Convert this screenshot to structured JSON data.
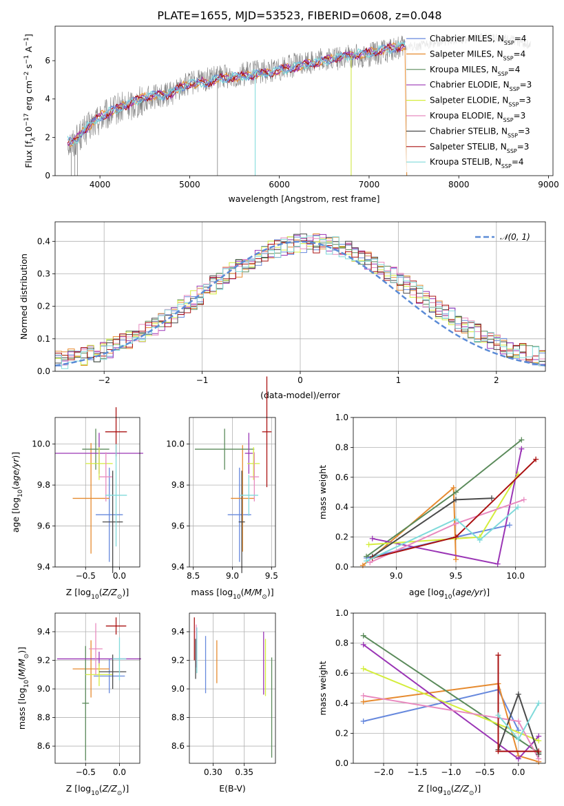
{
  "figure_title": "PLATE=1655, MJD=53523, FIBERID=0608, z=0.048",
  "colors": [
    "#6688dd",
    "#e68a2e",
    "#5a8a5a",
    "#9a35b5",
    "#d4ed3c",
    "#e88abf",
    "#4a4a4a",
    "#aa1111",
    "#7fdada"
  ],
  "chart_data": [
    {
      "id": "spectrum",
      "type": "line",
      "title": "PLATE=1655, MJD=53523, FIBERID=0608, z=0.048",
      "xlabel": "wavelength [Angstrom, rest frame]",
      "ylabel": "Flux [f",
      "xlim": [
        3500,
        9050
      ],
      "ylim": [
        0,
        7.8
      ],
      "xticks": [
        4000,
        5000,
        6000,
        7000,
        8000,
        9000
      ],
      "yticks": [
        0,
        2,
        4,
        6
      ],
      "data_x": [
        3640,
        3700,
        3800,
        3900,
        4000,
        4100,
        4200,
        4300,
        4400,
        4500,
        4600,
        4700,
        4800,
        4900,
        5000,
        5100,
        5200,
        5300,
        5400,
        5500,
        5600,
        5700,
        5800,
        5900,
        6000,
        6200,
        6400,
        6600,
        6800,
        7000,
        7200,
        7400,
        7600,
        7800,
        8000,
        8200,
        8400,
        8600,
        8800
      ],
      "data_y": [
        1.8,
        1.7,
        2.2,
        2.6,
        3.0,
        3.2,
        3.5,
        3.6,
        3.8,
        4.0,
        4.1,
        4.2,
        4.3,
        4.6,
        4.8,
        4.9,
        5.0,
        5.1,
        5.2,
        5.2,
        5.3,
        5.4,
        5.4,
        5.5,
        5.6,
        5.8,
        6.0,
        6.1,
        6.2,
        6.3,
        6.5,
        6.7,
        6.8,
        7.0,
        7.1,
        7.2,
        7.2,
        7.1,
        6.8
      ],
      "model_x": [
        3640,
        3700,
        3800,
        3900,
        4000,
        4100,
        4200,
        4300,
        4400,
        4500,
        4600,
        4700,
        4800,
        4900,
        5000,
        5200,
        5400,
        5600,
        5800,
        6000,
        6200,
        6400,
        6600,
        6800,
        7000,
        7200,
        7400
      ],
      "model_y": [
        1.8,
        1.7,
        2.3,
        2.7,
        3.1,
        3.3,
        3.5,
        3.7,
        3.9,
        4.1,
        4.2,
        4.2,
        4.3,
        4.6,
        4.8,
        4.9,
        5.1,
        5.2,
        5.3,
        5.5,
        5.7,
        5.9,
        6.1,
        6.3,
        6.4,
        6.6,
        6.8
      ],
      "legend": [
        {
          "label": "Chabrier MILES, N",
          "n": "=4"
        },
        {
          "label": "Salpeter MILES, N",
          "n": "=4"
        },
        {
          "label": "Kroupa MILES, N",
          "n": "=4"
        },
        {
          "label": "Chabrier ELODIE, N",
          "n": "=3"
        },
        {
          "label": "Salpeter ELODIE, N",
          "n": "=3"
        },
        {
          "label": "Kroupa ELODIE, N",
          "n": "=3"
        },
        {
          "label": "Chabrier STELIB, N",
          "n": "=3"
        },
        {
          "label": "Salpeter STELIB, N",
          "n": "=3"
        },
        {
          "label": "Kroupa STELIB, N",
          "n": "=4"
        }
      ]
    },
    {
      "id": "residuals",
      "type": "line",
      "xlabel": "(data-model)/error",
      "ylabel": "Normed distribution",
      "xlim": [
        -2.5,
        2.5
      ],
      "ylim": [
        0,
        0.46
      ],
      "xticks": [
        -2,
        -1,
        0,
        1,
        2
      ],
      "yticks": [
        0.0,
        0.1,
        0.2,
        0.3,
        0.4
      ],
      "bin_width": 0.1,
      "hist_base": [
        0.035,
        0.037,
        0.04,
        0.043,
        0.047,
        0.052,
        0.058,
        0.064,
        0.071,
        0.079,
        0.087,
        0.096,
        0.106,
        0.117,
        0.128,
        0.14,
        0.152,
        0.165,
        0.178,
        0.192,
        0.206,
        0.22,
        0.235,
        0.249,
        0.264,
        0.278,
        0.292,
        0.305,
        0.318,
        0.331,
        0.342,
        0.353,
        0.362,
        0.371,
        0.378,
        0.384,
        0.389,
        0.392,
        0.394,
        0.395,
        0.394,
        0.392,
        0.389,
        0.384,
        0.378,
        0.371,
        0.362,
        0.353,
        0.342,
        0.331,
        0.318,
        0.305,
        0.292,
        0.278,
        0.264,
        0.249,
        0.235,
        0.22,
        0.206,
        0.192,
        0.178,
        0.165,
        0.152,
        0.14,
        0.128,
        0.117,
        0.106,
        0.096,
        0.087,
        0.079,
        0.071,
        0.064,
        0.058,
        0.052,
        0.047,
        0.043
      ],
      "legend": "𝒩(0, 1)"
    },
    {
      "id": "age_vs_Z",
      "type": "scatter",
      "xlabel": "Z [log",
      "ylabel": "age  [log",
      "xlim": [
        -0.95,
        0.3
      ],
      "ylim": [
        9.4,
        10.13
      ],
      "xticks": [
        -0.5,
        0.0
      ],
      "xtick_labels": [
        "−0.5",
        "0.0"
      ],
      "yticks": [
        9.4,
        9.6,
        9.8,
        10.0
      ],
      "points": [
        {
          "x": -0.15,
          "y": 9.655,
          "dx": 0.2,
          "dy": 0.23
        },
        {
          "x": -0.42,
          "y": 9.735,
          "dx": 0.27,
          "dy": 0.27
        },
        {
          "x": -0.35,
          "y": 9.975,
          "dx": 0.2,
          "dy": 0.1
        },
        {
          "x": -0.3,
          "y": 9.955,
          "dx": 0.65,
          "dy": 0.1
        },
        {
          "x": -0.3,
          "y": 9.905,
          "dx": 0.2,
          "dy": 0.08
        },
        {
          "x": -0.2,
          "y": 9.84,
          "dx": 0.1,
          "dy": 0.12
        },
        {
          "x": -0.1,
          "y": 9.62,
          "dx": 0.15,
          "dy": 0.25
        },
        {
          "x": -0.05,
          "y": 10.06,
          "dx": 0.16,
          "dy": 0.12
        },
        {
          "x": -0.05,
          "y": 9.75,
          "dx": 0.16,
          "dy": 0.25
        }
      ]
    },
    {
      "id": "age_vs_mass",
      "type": "scatter",
      "xlabel": "mass [log",
      "ylabel": "",
      "xlim": [
        8.45,
        9.55
      ],
      "ylim": [
        9.4,
        10.13
      ],
      "xticks": [
        8.5,
        9.0,
        9.5
      ],
      "yticks": [
        9.4,
        9.6,
        9.8,
        10.0
      ],
      "points": [
        {
          "x": 9.09,
          "y": 9.655,
          "dx": 0.15,
          "dy": 0.23
        },
        {
          "x": 9.13,
          "y": 9.735,
          "dx": 0.15,
          "dy": 0.26
        },
        {
          "x": 8.9,
          "y": 9.975,
          "dx": 0.38,
          "dy": 0.1
        },
        {
          "x": 9.21,
          "y": 9.955,
          "dx": 0.05,
          "dy": 0.1
        },
        {
          "x": 9.27,
          "y": 9.905,
          "dx": 0.08,
          "dy": 0.08
        },
        {
          "x": 9.28,
          "y": 9.84,
          "dx": 0.06,
          "dy": 0.12
        },
        {
          "x": 9.12,
          "y": 9.62,
          "dx": 0.04,
          "dy": 0.25
        },
        {
          "x": 9.44,
          "y": 10.06,
          "dx": 0.06,
          "dy": 0.27
        },
        {
          "x": 9.21,
          "y": 9.75,
          "dx": 0.12,
          "dy": 0.1
        }
      ]
    },
    {
      "id": "weight_vs_age",
      "type": "line",
      "xlabel": "age  [log",
      "ylabel": "mass weight",
      "xlim": [
        8.64,
        10.25
      ],
      "ylim": [
        0.0,
        1.0
      ],
      "xticks": [
        9.0,
        9.5,
        10.0
      ],
      "yticks": [
        0.0,
        0.2,
        0.4,
        0.6,
        0.8,
        1.0
      ],
      "series": [
        {
          "x": [
            8.75,
            9.5,
            9.95
          ],
          "y": [
            0.06,
            0.2,
            0.28
          ]
        },
        {
          "x": [
            8.72,
            9.48,
            9.5
          ],
          "y": [
            0.01,
            0.53,
            0.05
          ]
        },
        {
          "x": [
            8.75,
            9.5,
            10.05
          ],
          "y": [
            0.07,
            0.5,
            0.85
          ]
        },
        {
          "x": [
            8.8,
            9.85,
            10.05
          ],
          "y": [
            0.19,
            0.02,
            0.79
          ]
        },
        {
          "x": [
            8.77,
            9.7,
            10.02
          ],
          "y": [
            0.15,
            0.2,
            0.62
          ]
        },
        {
          "x": [
            8.78,
            9.5,
            10.07
          ],
          "y": [
            0.03,
            0.29,
            0.45
          ]
        },
        {
          "x": [
            8.8,
            9.5,
            9.8
          ],
          "y": [
            0.07,
            0.45,
            0.46
          ]
        },
        {
          "x": [
            8.8,
            9.5,
            10.17
          ],
          "y": [
            0.06,
            0.2,
            0.72
          ]
        },
        {
          "x": [
            8.75,
            9.5,
            9.7,
            10.02
          ],
          "y": [
            0.04,
            0.32,
            0.18,
            0.4
          ]
        }
      ]
    },
    {
      "id": "mass_vs_Z",
      "type": "scatter",
      "xlabel": "Z [log",
      "ylabel": "mass [log",
      "xlim": [
        -0.95,
        0.3
      ],
      "ylim": [
        8.48,
        9.53
      ],
      "xticks": [
        -0.5,
        0.0
      ],
      "xtick_labels": [
        "−0.5",
        "0.0"
      ],
      "yticks": [
        8.6,
        8.8,
        9.0,
        9.2,
        9.4
      ],
      "ytick_labels": [
        "8.6",
        "8.8",
        "9.0",
        "9.2",
        "9.4"
      ],
      "points": [
        {
          "x": -0.15,
          "y": 9.09,
          "dx": 0.23,
          "dy": 0.12
        },
        {
          "x": -0.42,
          "y": 9.14,
          "dx": 0.27,
          "dy": 0.2
        },
        {
          "x": -0.5,
          "y": 8.9,
          "dx": 0.05,
          "dy": 0.4
        },
        {
          "x": -0.3,
          "y": 9.21,
          "dx": 0.62,
          "dy": 0.05
        },
        {
          "x": -0.3,
          "y": 9.1,
          "dx": 0.2,
          "dy": 0.08
        },
        {
          "x": -0.35,
          "y": 9.28,
          "dx": 0.1,
          "dy": 0.18
        },
        {
          "x": -0.1,
          "y": 9.12,
          "dx": 0.2,
          "dy": 0.12
        },
        {
          "x": -0.05,
          "y": 9.44,
          "dx": 0.15,
          "dy": 0.06
        },
        {
          "x": 0.0,
          "y": 9.21,
          "dx": 0.1,
          "dy": 0.15
        }
      ]
    },
    {
      "id": "mass_vs_EBV",
      "type": "scatter",
      "xlabel": "E(B-V)",
      "ylabel": "",
      "xlim": [
        0.262,
        0.4
      ],
      "ylim": [
        8.48,
        9.53
      ],
      "xticks": [
        0.3,
        0.35
      ],
      "xtick_labels": [
        "0.30",
        "0.35"
      ],
      "yticks": [
        8.6,
        8.8,
        9.0,
        9.2,
        9.4
      ],
      "ytick_labels": [
        "8.6",
        "8.8",
        "9.0",
        "9.2",
        "9.4"
      ],
      "points": [
        {
          "x": 0.288,
          "y": 9.17,
          "dx": 0,
          "dy": 0.2
        },
        {
          "x": 0.306,
          "y": 9.19,
          "dx": 0,
          "dy": 0.15
        },
        {
          "x": 0.394,
          "y": 8.87,
          "dx": 0,
          "dy": 0.35
        },
        {
          "x": 0.381,
          "y": 9.18,
          "dx": 0,
          "dy": 0.22
        },
        {
          "x": 0.384,
          "y": 9.15,
          "dx": 0,
          "dy": 0.2
        },
        {
          "x": 0.273,
          "y": 9.3,
          "dx": 0,
          "dy": 0.15
        },
        {
          "x": 0.272,
          "y": 9.21,
          "dx": 0,
          "dy": 0.14
        },
        {
          "x": 0.27,
          "y": 9.35,
          "dx": 0,
          "dy": 0.15
        },
        {
          "x": 0.274,
          "y": 9.27,
          "dx": 0,
          "dy": 0.16
        }
      ]
    },
    {
      "id": "weight_vs_Z",
      "type": "line",
      "xlabel": "Z [log",
      "ylabel": "mass weight",
      "xlim": [
        -2.45,
        0.4
      ],
      "ylim": [
        0.0,
        1.0
      ],
      "xticks": [
        -2.0,
        -1.5,
        -1.0,
        -0.5,
        0.0
      ],
      "xtick_labels": [
        "−2.0",
        "−1.5",
        "−1.0",
        "−0.5",
        "0.0"
      ],
      "yticks": [
        0.0,
        0.2,
        0.4,
        0.6,
        0.8,
        1.0
      ],
      "series": [
        {
          "x": [
            -2.3,
            -0.3,
            0.0
          ],
          "y": [
            0.28,
            0.49,
            0.22
          ]
        },
        {
          "x": [
            -2.3,
            -0.3,
            0.0,
            0.3
          ],
          "y": [
            0.41,
            0.53,
            0.05,
            0.01
          ]
        },
        {
          "x": [
            -2.3,
            0.3
          ],
          "y": [
            0.85,
            0.07
          ]
        },
        {
          "x": [
            -2.3,
            0.0,
            0.3
          ],
          "y": [
            0.79,
            0.03,
            0.18
          ]
        },
        {
          "x": [
            -2.3,
            0.3
          ],
          "y": [
            0.63,
            0.15
          ]
        },
        {
          "x": [
            -2.3,
            0.0,
            0.3
          ],
          "y": [
            0.45,
            0.28,
            0.03
          ]
        },
        {
          "x": [
            -0.3,
            0.0,
            0.3
          ],
          "y": [
            0.09,
            0.46,
            0.06
          ]
        },
        {
          "x": [
            -0.3,
            -0.3,
            0.3
          ],
          "y": [
            0.72,
            0.08,
            0.08
          ]
        },
        {
          "x": [
            -0.3,
            0.0,
            0.3
          ],
          "y": [
            0.32,
            0.16,
            0.4
          ]
        }
      ]
    }
  ]
}
